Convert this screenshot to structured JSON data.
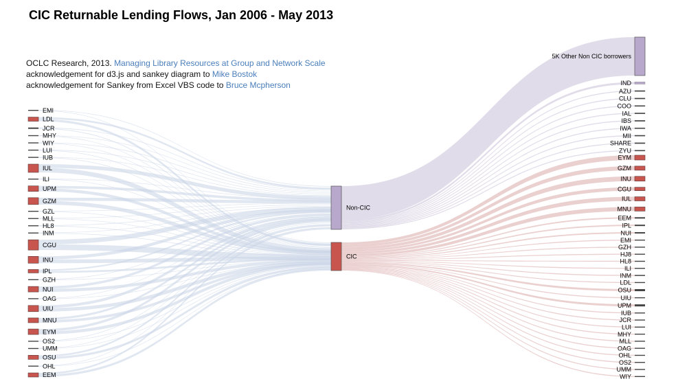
{
  "title": "CIC Returnable Lending Flows, Jan 2006 - May 2013",
  "credits": [
    {
      "text": "OCLC Research, 2013. ",
      "link": "Managing Library Resources at Group and Network Scale"
    },
    {
      "text": "acknowledgement for d3.js and sankey diagram to ",
      "link": "Mike Bostok"
    },
    {
      "text": "acknowledgement for Sankey from Excel VBS code to ",
      "link": "Bruce Mcpherson"
    }
  ],
  "colors": {
    "source": "#c8554e",
    "middle": "#b8a8cc",
    "noncic_link": "#d9d3e3",
    "source_link": "#c8d4e6",
    "cic_link": "#e2bcbc",
    "other": "#b8a8cc"
  },
  "sources": [
    {
      "name": "EMI",
      "v": 0.4
    },
    {
      "name": "LDL",
      "v": 6
    },
    {
      "name": "JCR",
      "v": 2
    },
    {
      "name": "MHY",
      "v": 0.4
    },
    {
      "name": "WIY",
      "v": 0.4
    },
    {
      "name": "LUI",
      "v": 0.4
    },
    {
      "name": "IUB",
      "v": 0.4
    },
    {
      "name": "IUL",
      "v": 12
    },
    {
      "name": "ILI",
      "v": 0.6
    },
    {
      "name": "UPM",
      "v": 8
    },
    {
      "name": "GZM",
      "v": 10
    },
    {
      "name": "GZL",
      "v": 0.4
    },
    {
      "name": "MLL",
      "v": 0.4
    },
    {
      "name": "HL8",
      "v": 0.4
    },
    {
      "name": "INM",
      "v": 1
    },
    {
      "name": "CGU",
      "v": 15
    },
    {
      "name": "INU",
      "v": 10
    },
    {
      "name": "IPL",
      "v": 5
    },
    {
      "name": "GZH",
      "v": 0.4
    },
    {
      "name": "NUI",
      "v": 8
    },
    {
      "name": "OAG",
      "v": 0.4
    },
    {
      "name": "UIU",
      "v": 9
    },
    {
      "name": "MNU",
      "v": 7
    },
    {
      "name": "EYM",
      "v": 8
    },
    {
      "name": "OS2",
      "v": 0.4
    },
    {
      "name": "UMM",
      "v": 1
    },
    {
      "name": "OSU",
      "v": 6
    },
    {
      "name": "OHL",
      "v": 0.6
    },
    {
      "name": "EEM",
      "v": 6
    }
  ],
  "middle": [
    {
      "name": "Non-CIC"
    },
    {
      "name": "CIC"
    }
  ],
  "targets_noncic": [
    {
      "name": "5K Other Non CIC borrowers",
      "v": 56
    },
    {
      "name": "IND",
      "v": 3
    },
    {
      "name": "AZU",
      "v": 0.4
    },
    {
      "name": "CLU",
      "v": 0.4
    },
    {
      "name": "COO",
      "v": 1
    },
    {
      "name": "IAL",
      "v": 0.4
    },
    {
      "name": "IBS",
      "v": 0.4
    },
    {
      "name": "IWA",
      "v": 0.4
    },
    {
      "name": "MII",
      "v": 0.4
    },
    {
      "name": "SHARE",
      "v": 0.4
    },
    {
      "name": "ZYU",
      "v": 0.4
    }
  ],
  "targets_cic": [
    {
      "name": "EYM",
      "v": 7
    },
    {
      "name": "GZM",
      "v": 6
    },
    {
      "name": "INU",
      "v": 7
    },
    {
      "name": "CGU",
      "v": 5
    },
    {
      "name": "IUL",
      "v": 6
    },
    {
      "name": "MNU",
      "v": 6
    },
    {
      "name": "EEM",
      "v": 2
    },
    {
      "name": "IPL",
      "v": 2
    },
    {
      "name": "NUI",
      "v": 2
    },
    {
      "name": "EMI",
      "v": 0.4
    },
    {
      "name": "GZH",
      "v": 0.4
    },
    {
      "name": "HJ8",
      "v": 0.4
    },
    {
      "name": "HL8",
      "v": 0.4
    },
    {
      "name": "ILI",
      "v": 0.4
    },
    {
      "name": "INM",
      "v": 1.5
    },
    {
      "name": "LDL",
      "v": 0.4
    },
    {
      "name": "OSU",
      "v": 3
    },
    {
      "name": "UIU",
      "v": 0.4
    },
    {
      "name": "UPM",
      "v": 3
    },
    {
      "name": "IUB",
      "v": 0.4
    },
    {
      "name": "JCR",
      "v": 0.4
    },
    {
      "name": "LUI",
      "v": 0.4
    },
    {
      "name": "MHY",
      "v": 0.4
    },
    {
      "name": "MLL",
      "v": 0.4
    },
    {
      "name": "OAG",
      "v": 0.4
    },
    {
      "name": "OHL",
      "v": 0.4
    },
    {
      "name": "OS2",
      "v": 0.4
    },
    {
      "name": "UMM",
      "v": 0.4
    },
    {
      "name": "WIY",
      "v": 0.4
    }
  ]
}
